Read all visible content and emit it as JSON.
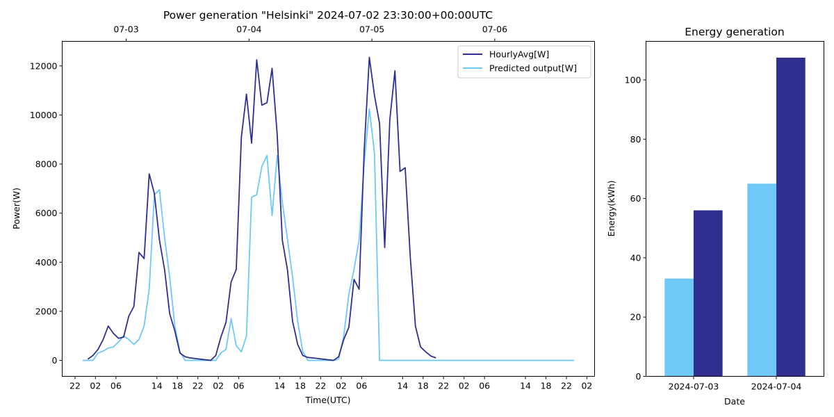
{
  "chart_data": [
    {
      "type": "line",
      "title": "Power generation \"Helsinki\" 2024-07-02 23:30:00+00:00UTC",
      "xlabel": "Time(UTC)",
      "ylabel": "Power(W)",
      "x_unit": "hours since 2024-07-03 00:00 UTC",
      "xlim": [
        -4.5,
        99.5
      ],
      "ylim": [
        -650,
        13000
      ],
      "grid": false,
      "legend_position": "top-right",
      "bottom_ticks": [
        {
          "x": -2,
          "label": "22"
        },
        {
          "x": 2,
          "label": "02"
        },
        {
          "x": 6,
          "label": "06"
        },
        {
          "x": 14,
          "label": "14"
        },
        {
          "x": 18,
          "label": "18"
        },
        {
          "x": 22,
          "label": "22"
        },
        {
          "x": 26,
          "label": "02"
        },
        {
          "x": 30,
          "label": "06"
        },
        {
          "x": 38,
          "label": "14"
        },
        {
          "x": 42,
          "label": "18"
        },
        {
          "x": 46,
          "label": "22"
        },
        {
          "x": 50,
          "label": "02"
        },
        {
          "x": 54,
          "label": "06"
        },
        {
          "x": 62,
          "label": "14"
        },
        {
          "x": 66,
          "label": "18"
        },
        {
          "x": 70,
          "label": "22"
        },
        {
          "x": 74,
          "label": "02"
        },
        {
          "x": 78,
          "label": "06"
        },
        {
          "x": 86,
          "label": "14"
        },
        {
          "x": 90,
          "label": "18"
        },
        {
          "x": 94,
          "label": "22"
        },
        {
          "x": 98,
          "label": "02"
        }
      ],
      "top_ticks": [
        {
          "x": 8,
          "label": "07-03"
        },
        {
          "x": 32,
          "label": "07-04"
        },
        {
          "x": 56,
          "label": "07-05"
        },
        {
          "x": 80,
          "label": "07-06"
        }
      ],
      "y_ticks": [
        0,
        2000,
        4000,
        6000,
        8000,
        10000,
        12000
      ],
      "series": [
        {
          "name": "HourlyAvg[W]",
          "color": "#2f2f8f",
          "points": [
            [
              0.5,
              50
            ],
            [
              1.5,
              200
            ],
            [
              2.5,
              450
            ],
            [
              3.5,
              850
            ],
            [
              4.5,
              1400
            ],
            [
              5.5,
              1100
            ],
            [
              6.5,
              900
            ],
            [
              7.5,
              950
            ],
            [
              8.5,
              1800
            ],
            [
              9.5,
              2200
            ],
            [
              10.5,
              4400
            ],
            [
              11.5,
              4150
            ],
            [
              12.5,
              7600
            ],
            [
              13.5,
              6800
            ],
            [
              14.5,
              4900
            ],
            [
              15.5,
              3700
            ],
            [
              16.5,
              1900
            ],
            [
              17.5,
              1200
            ],
            [
              18.5,
              300
            ],
            [
              19.5,
              150
            ],
            [
              20.5,
              100
            ],
            [
              24.5,
              0
            ],
            [
              25.5,
              200
            ],
            [
              26.5,
              950
            ],
            [
              27.5,
              1550
            ],
            [
              28.5,
              3200
            ],
            [
              29.5,
              3700
            ],
            [
              30.5,
              9100
            ],
            [
              31.5,
              10850
            ],
            [
              32.5,
              8850
            ],
            [
              33.5,
              12250
            ],
            [
              34.5,
              10400
            ],
            [
              35.5,
              10500
            ],
            [
              36.5,
              11900
            ],
            [
              37.5,
              9200
            ],
            [
              38.5,
              4900
            ],
            [
              39.5,
              3700
            ],
            [
              40.5,
              1600
            ],
            [
              41.5,
              650
            ],
            [
              42.5,
              200
            ],
            [
              43.5,
              120
            ],
            [
              44.5,
              100
            ],
            [
              48.5,
              0
            ],
            [
              49.5,
              150
            ],
            [
              50.5,
              850
            ],
            [
              51.5,
              1350
            ],
            [
              52.5,
              3300
            ],
            [
              53.5,
              2900
            ],
            [
              54.5,
              8600
            ],
            [
              55.5,
              12350
            ],
            [
              56.5,
              10800
            ],
            [
              57.5,
              9650
            ],
            [
              58.5,
              4600
            ],
            [
              59.5,
              9800
            ],
            [
              60.5,
              11800
            ],
            [
              61.5,
              7700
            ],
            [
              62.5,
              7850
            ],
            [
              63.5,
              4200
            ],
            [
              64.5,
              1400
            ],
            [
              65.5,
              550
            ],
            [
              66.5,
              350
            ],
            [
              67.5,
              180
            ],
            [
              68.5,
              100
            ]
          ]
        },
        {
          "name": "Predicted output[W]",
          "color": "#6ec8f8",
          "points": [
            [
              -0.5,
              0
            ],
            [
              0.5,
              0
            ],
            [
              1.5,
              0
            ],
            [
              2.5,
              300
            ],
            [
              3.5,
              380
            ],
            [
              4.5,
              500
            ],
            [
              5.5,
              550
            ],
            [
              6.5,
              750
            ],
            [
              7.5,
              1000
            ],
            [
              8.5,
              850
            ],
            [
              9.5,
              650
            ],
            [
              10.5,
              850
            ],
            [
              11.5,
              1400
            ],
            [
              12.5,
              2900
            ],
            [
              13.5,
              6750
            ],
            [
              14.5,
              6950
            ],
            [
              15.5,
              5000
            ],
            [
              16.5,
              3400
            ],
            [
              17.5,
              1400
            ],
            [
              18.5,
              350
            ],
            [
              19.5,
              0
            ],
            [
              20.5,
              0
            ],
            [
              21.5,
              0
            ],
            [
              22.5,
              0
            ],
            [
              23.5,
              0
            ],
            [
              24.5,
              0
            ],
            [
              25.5,
              0
            ],
            [
              26.5,
              300
            ],
            [
              27.5,
              450
            ],
            [
              28.5,
              1700
            ],
            [
              29.5,
              600
            ],
            [
              30.5,
              350
            ],
            [
              31.5,
              1000
            ],
            [
              32.5,
              6650
            ],
            [
              33.5,
              6750
            ],
            [
              34.5,
              7900
            ],
            [
              35.5,
              8350
            ],
            [
              36.5,
              5900
            ],
            [
              37.5,
              8350
            ],
            [
              38.5,
              6450
            ],
            [
              39.5,
              4950
            ],
            [
              40.5,
              3400
            ],
            [
              41.5,
              1600
            ],
            [
              42.5,
              350
            ],
            [
              43.5,
              0
            ],
            [
              44.5,
              0
            ],
            [
              45.5,
              0
            ],
            [
              46.5,
              0
            ],
            [
              47.5,
              0
            ],
            [
              48.5,
              0
            ],
            [
              49.5,
              50
            ],
            [
              50.5,
              1000
            ],
            [
              51.5,
              2700
            ],
            [
              52.5,
              3700
            ],
            [
              53.5,
              4900
            ],
            [
              54.5,
              8050
            ],
            [
              55.5,
              10250
            ],
            [
              56.5,
              8450
            ],
            [
              57.5,
              0
            ],
            [
              58.5,
              0
            ],
            [
              59.5,
              0
            ],
            [
              60.5,
              0
            ],
            [
              70,
              0
            ],
            [
              80,
              0
            ],
            [
              90,
              0
            ],
            [
              95.5,
              0
            ]
          ]
        }
      ]
    },
    {
      "type": "bar",
      "title": "Energy generation",
      "xlabel": "Date",
      "ylabel": "Energy(kWh)",
      "categories": [
        "2024-07-03",
        "2024-07-04"
      ],
      "ylim": [
        0,
        113
      ],
      "y_ticks": [
        0,
        20,
        40,
        60,
        80,
        100
      ],
      "grid": false,
      "series": [
        {
          "color": "#6ec8f8",
          "values": [
            33,
            65
          ]
        },
        {
          "color": "#2f2f8f",
          "values": [
            56,
            107.5
          ]
        }
      ]
    }
  ]
}
